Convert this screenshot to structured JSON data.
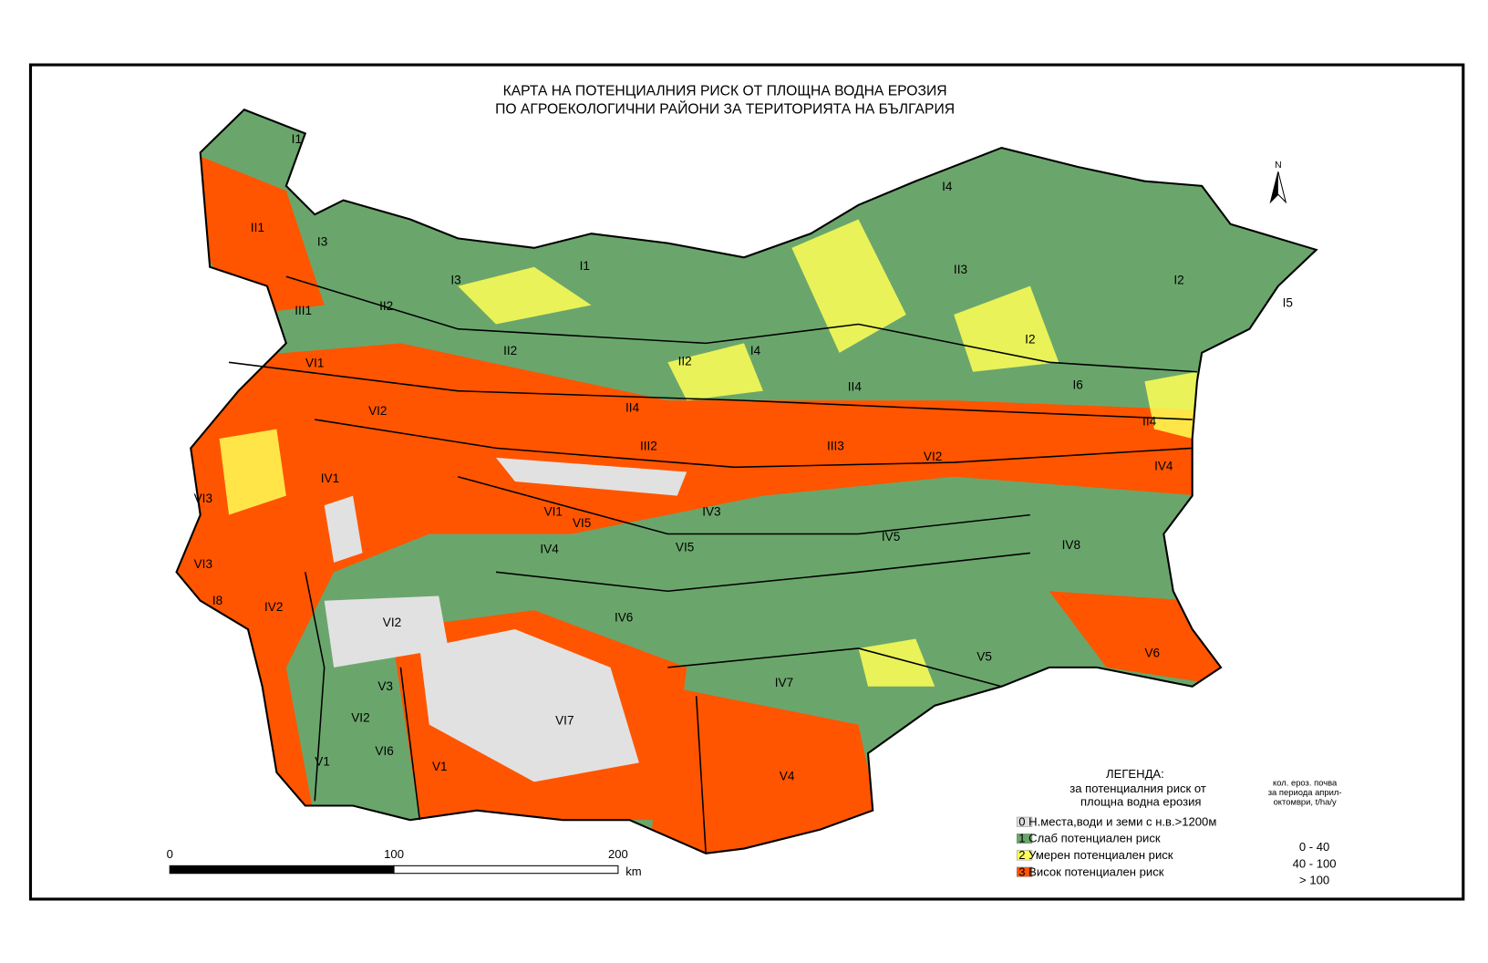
{
  "header": {
    "title_lines": [
      "КАРТА НА ПОТЕНЦИАЛНИЯ РИСК ОТ ПЛОЩНА ВОДНА ЕРОЗИЯ",
      "ПО АГРОЕКОЛОГИЧНИ РАЙОНИ ЗА ТЕРИТОРИЯТА НА БЪЛГАРИЯ"
    ]
  },
  "north": "N",
  "regions": [
    "I1",
    "II1",
    "I3",
    "I3",
    "I1",
    "II2",
    "III1",
    "VI1",
    "II2",
    "II2",
    "I4",
    "I4",
    "II3",
    "I2",
    "I5",
    "I2",
    "II4",
    "I6",
    "VI2",
    "II4",
    "III2",
    "III3",
    "VI2",
    "II4",
    "IV4",
    "VI3",
    "IV1",
    "VI1",
    "IV3",
    "VI5",
    "VI5",
    "IV4",
    "IV5",
    "IV8",
    "VI3",
    "I8",
    "IV2",
    "VI2",
    "IV6",
    "V3",
    "VI2",
    "VI7",
    "IV7",
    "V5",
    "V6",
    "V1",
    "VI6",
    "V1",
    "V4"
  ],
  "legend": {
    "title": "ЛЕГЕНДА:",
    "subtitle_lines": [
      "за потенциалния риск от",
      "площна водна ерозия"
    ],
    "units_lines": [
      "кол. ероз. почва",
      "за периода април-",
      "октомври, t/ha/y"
    ],
    "items": [
      {
        "label": "0 Н.места,води и земи с н.в.>1200м",
        "color": "#e1e1e1"
      },
      {
        "label": "1 Слаб потенциален риск",
        "color": "#6aa66c",
        "range": "0 -  40"
      },
      {
        "label": "2 Умерен потенциален риск",
        "color": "#ffff55",
        "range": "40 - 100"
      },
      {
        "label": "3 Висок потенциален риск",
        "color": "#ff5500",
        "range": "> 100"
      }
    ]
  },
  "scale_bar": {
    "labels": [
      0,
      100,
      200
    ],
    "unit": "km"
  }
}
